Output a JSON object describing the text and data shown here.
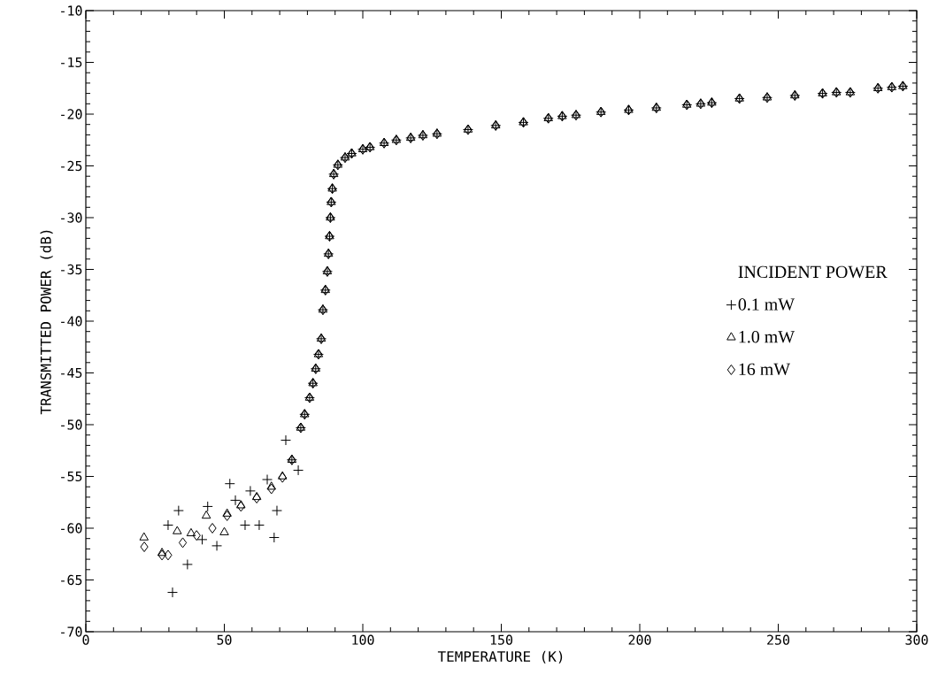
{
  "chart_data": {
    "type": "scatter",
    "xlabel": "TEMPERATURE (K)",
    "ylabel": "TRANSMITTED POWER (dB)",
    "legend_title": "INCIDENT POWER",
    "legend": "right",
    "xlim": [
      0,
      300
    ],
    "ylim": [
      -70,
      -10
    ],
    "xticks": [
      0,
      50,
      100,
      150,
      200,
      250,
      300
    ],
    "yticks": [
      -70,
      -65,
      -60,
      -55,
      -50,
      -45,
      -40,
      -35,
      -30,
      -25,
      -20,
      -15,
      -10
    ],
    "series": [
      {
        "name": "0.1 mW",
        "color": "#000000",
        "marker": "cross",
        "x": [
          31.3,
          33.5,
          29.7,
          36.7,
          42,
          44,
          47.3,
          52,
          54,
          57.5,
          59.4,
          62.6,
          65.5,
          68,
          69,
          72.2,
          76.7,
          74.4,
          77.6,
          79,
          80.8,
          82,
          83,
          84,
          85,
          85.6,
          86.5,
          87.2,
          87.6,
          88,
          88.3,
          88.6,
          89,
          89.5,
          91,
          93.6,
          96,
          100,
          102.6,
          107.7,
          112.1,
          117.3,
          121.7,
          126.8,
          138,
          148,
          158,
          167,
          172,
          177,
          186,
          196,
          206,
          217,
          222,
          226,
          236,
          246,
          256,
          266,
          271,
          276,
          286,
          291,
          295
        ],
        "values": [
          -66.2,
          -58.3,
          -59.7,
          -63.5,
          -61.1,
          -57.9,
          -61.7,
          -55.7,
          -57.3,
          -59.7,
          -56.4,
          -59.7,
          -55.3,
          -60.9,
          -58.3,
          -51.5,
          -54.4,
          -53.4,
          -50.3,
          -49,
          -47.4,
          -46,
          -44.6,
          -43.2,
          -41.7,
          -38.9,
          -37,
          -35.2,
          -33.5,
          -31.8,
          -30,
          -28.5,
          -27.2,
          -25.8,
          -24.9,
          -24.2,
          -23.8,
          -23.4,
          -23.2,
          -22.8,
          -22.5,
          -22.3,
          -22.05,
          -21.9,
          -21.5,
          -21.1,
          -20.8,
          -20.4,
          -20.2,
          -20.1,
          -19.8,
          -19.6,
          -19.4,
          -19.1,
          -19,
          -18.9,
          -18.5,
          -18.4,
          -18.2,
          -18,
          -17.9,
          -17.9,
          -17.5,
          -17.4,
          -17.3
        ]
      },
      {
        "name": "1.0 mW",
        "color": "#000000",
        "marker": "triangle",
        "x": [
          21,
          27.5,
          33,
          38,
          43.5,
          50,
          51,
          56,
          61.7,
          67,
          71,
          74.4,
          77.6,
          79,
          80.8,
          82,
          83,
          84,
          85,
          85.6,
          86.5,
          87.2,
          87.6,
          88,
          88.3,
          88.6,
          89,
          89.5,
          91,
          93.6,
          96,
          100,
          102.6,
          107.7,
          112.1,
          117.3,
          121.7,
          126.8,
          138,
          148,
          158,
          167,
          172,
          177,
          186,
          196,
          206,
          217,
          222,
          226,
          236,
          246,
          256,
          266,
          271,
          276,
          286,
          291,
          295
        ],
        "values": [
          -60.9,
          -62.4,
          -60.3,
          -60.5,
          -58.8,
          -60.4,
          -58.6,
          -57.8,
          -57,
          -56,
          -55,
          -53.4,
          -50.3,
          -49,
          -47.4,
          -46,
          -44.6,
          -43.2,
          -41.7,
          -38.9,
          -37,
          -35.2,
          -33.5,
          -31.8,
          -30,
          -28.5,
          -27.2,
          -25.8,
          -24.9,
          -24.2,
          -23.8,
          -23.4,
          -23.2,
          -22.8,
          -22.5,
          -22.3,
          -22.05,
          -21.9,
          -21.5,
          -21.1,
          -20.8,
          -20.4,
          -20.2,
          -20.1,
          -19.8,
          -19.6,
          -19.4,
          -19.1,
          -19,
          -18.9,
          -18.5,
          -18.4,
          -18.2,
          -18,
          -17.9,
          -17.9,
          -17.5,
          -17.4,
          -17.3
        ]
      },
      {
        "name": "16 mW",
        "color": "#000000",
        "marker": "diamond",
        "x": [
          21.1,
          27.5,
          29.7,
          35,
          40,
          45.7,
          51,
          56,
          61.7,
          67,
          71,
          74.4,
          77.6,
          79,
          80.8,
          82,
          83,
          84,
          85,
          85.6,
          86.5,
          87.2,
          87.6,
          88,
          88.3,
          88.6,
          89,
          89.5,
          91,
          93.6,
          96,
          100,
          102.6,
          107.7,
          112.1,
          117.3,
          121.7,
          126.8,
          138,
          148,
          158,
          167,
          172,
          177,
          186,
          196,
          206,
          217,
          222,
          226,
          236,
          246,
          256,
          266,
          271,
          276,
          286,
          291,
          295
        ],
        "values": [
          -61.8,
          -62.6,
          -62.6,
          -61.4,
          -60.7,
          -60,
          -58.8,
          -57.9,
          -57.1,
          -56.2,
          -55.1,
          -53.4,
          -50.3,
          -49,
          -47.4,
          -46,
          -44.6,
          -43.2,
          -41.7,
          -38.9,
          -37,
          -35.2,
          -33.5,
          -31.8,
          -30,
          -28.5,
          -27.2,
          -25.8,
          -24.9,
          -24.2,
          -23.8,
          -23.4,
          -23.2,
          -22.8,
          -22.5,
          -22.3,
          -22.05,
          -21.9,
          -21.5,
          -21.1,
          -20.8,
          -20.4,
          -20.2,
          -20.1,
          -19.8,
          -19.6,
          -19.4,
          -19.1,
          -19,
          -18.9,
          -18.5,
          -18.4,
          -18.2,
          -18,
          -17.9,
          -17.9,
          -17.5,
          -17.4,
          -17.3
        ]
      }
    ]
  }
}
